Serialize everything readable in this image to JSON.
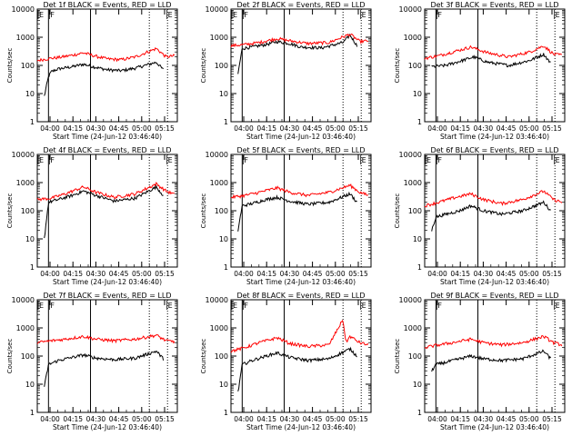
{
  "chart_data": [
    {
      "type": "line",
      "title": "Det 1f BLACK = Events, RED = LLD",
      "ylabel": "Counts/sec",
      "xlabel": "Start Time (24-Jun-12 03:46:40)",
      "yscale": "log",
      "ylim": [
        1,
        10000
      ],
      "yticks": [
        "1",
        "10",
        "100",
        "1000",
        "10000"
      ],
      "xticks": [
        "04:00",
        "04:15",
        "04:30",
        "04:45",
        "05:00",
        "05:15"
      ],
      "markers": [
        "E",
        "F",
        "E"
      ],
      "series": [
        {
          "name": "BLACK = Events",
          "color": "#000000",
          "profile": [
            [
              0.05,
              8
            ],
            [
              0.08,
              40
            ],
            [
              0.1,
              60
            ],
            [
              0.15,
              75
            ],
            [
              0.25,
              90
            ],
            [
              0.33,
              110
            ],
            [
              0.42,
              85
            ],
            [
              0.5,
              70
            ],
            [
              0.6,
              65
            ],
            [
              0.7,
              80
            ],
            [
              0.85,
              130
            ],
            [
              0.9,
              70
            ]
          ]
        },
        {
          "name": "RED = LLD",
          "color": "#ff0000",
          "profile": [
            [
              0,
              150
            ],
            [
              0.1,
              180
            ],
            [
              0.15,
              190
            ],
            [
              0.25,
              230
            ],
            [
              0.33,
              280
            ],
            [
              0.42,
              210
            ],
            [
              0.5,
              170
            ],
            [
              0.6,
              160
            ],
            [
              0.7,
              200
            ],
            [
              0.85,
              400
            ],
            [
              0.92,
              200
            ],
            [
              0.98,
              220
            ]
          ]
        }
      ]
    },
    {
      "type": "line",
      "title": "Det 2f BLACK = Events, RED = LLD",
      "ylabel": "Counts/sec",
      "xlabel": "Start Time (24-Jun-12 03:46:40)",
      "yscale": "log",
      "ylim": [
        1,
        10000
      ],
      "yticks": [
        "1",
        "10",
        "100",
        "1000",
        "10000"
      ],
      "xticks": [
        "04:00",
        "04:15",
        "04:30",
        "04:45",
        "05:00",
        "05:15"
      ],
      "markers": [
        "E",
        "F",
        "E"
      ],
      "series": [
        {
          "name": "BLACK = Events",
          "color": "#000000",
          "profile": [
            [
              0.05,
              50
            ],
            [
              0.08,
              400
            ],
            [
              0.15,
              450
            ],
            [
              0.25,
              550
            ],
            [
              0.33,
              700
            ],
            [
              0.42,
              600
            ],
            [
              0.5,
              450
            ],
            [
              0.65,
              420
            ],
            [
              0.8,
              650
            ],
            [
              0.85,
              1200
            ],
            [
              0.9,
              500
            ]
          ]
        },
        {
          "name": "RED = LLD",
          "color": "#ff0000",
          "profile": [
            [
              0,
              500
            ],
            [
              0.1,
              550
            ],
            [
              0.2,
              650
            ],
            [
              0.33,
              900
            ],
            [
              0.42,
              750
            ],
            [
              0.55,
              600
            ],
            [
              0.7,
              650
            ],
            [
              0.85,
              1300
            ],
            [
              0.92,
              700
            ],
            [
              0.98,
              750
            ]
          ]
        }
      ]
    },
    {
      "type": "line",
      "title": "Det 3f BLACK = Events, RED = LLD",
      "ylabel": "Counts/sec",
      "xlabel": "Start Time (24-Jun-12 03:46:40)",
      "yscale": "log",
      "ylim": [
        1,
        10000
      ],
      "yticks": [
        "1",
        "10",
        "100",
        "1000",
        "10000"
      ],
      "xticks": [
        "04:00",
        "04:15",
        "04:30",
        "04:45",
        "05:00",
        "05:15"
      ],
      "markers": [
        "F",
        "E"
      ],
      "series": [
        {
          "name": "BLACK = Events",
          "color": "#000000",
          "profile": [
            [
              0.05,
              90
            ],
            [
              0.15,
              100
            ],
            [
              0.25,
              140
            ],
            [
              0.35,
              200
            ],
            [
              0.45,
              130
            ],
            [
              0.6,
              100
            ],
            [
              0.75,
              150
            ],
            [
              0.85,
              250
            ],
            [
              0.9,
              120
            ]
          ]
        },
        {
          "name": "RED = LLD",
          "color": "#ff0000",
          "profile": [
            [
              0,
              180
            ],
            [
              0.1,
              220
            ],
            [
              0.2,
              300
            ],
            [
              0.33,
              450
            ],
            [
              0.45,
              280
            ],
            [
              0.6,
              200
            ],
            [
              0.75,
              300
            ],
            [
              0.85,
              500
            ],
            [
              0.92,
              250
            ],
            [
              0.98,
              230
            ]
          ]
        }
      ]
    },
    {
      "type": "line",
      "title": "Det 4f BLACK = Events, RED = LLD",
      "ylabel": "Counts/sec",
      "xlabel": "Start Time (24-Jun-12 03:46:40)",
      "yscale": "log",
      "ylim": [
        1,
        10000
      ],
      "yticks": [
        "1",
        "10",
        "100",
        "1000",
        "10000"
      ],
      "xticks": [
        "04:00",
        "04:15",
        "04:30",
        "04:45",
        "05:00",
        "05:15"
      ],
      "markers": [
        "E",
        "F",
        "E"
      ],
      "series": [
        {
          "name": "BLACK = Events",
          "color": "#000000",
          "profile": [
            [
              0.05,
              10
            ],
            [
              0.08,
              200
            ],
            [
              0.15,
              250
            ],
            [
              0.25,
              350
            ],
            [
              0.33,
              500
            ],
            [
              0.42,
              350
            ],
            [
              0.55,
              220
            ],
            [
              0.7,
              280
            ],
            [
              0.85,
              700
            ],
            [
              0.9,
              350
            ]
          ]
        },
        {
          "name": "RED = LLD",
          "color": "#ff0000",
          "profile": [
            [
              0,
              250
            ],
            [
              0.1,
              280
            ],
            [
              0.2,
              400
            ],
            [
              0.33,
              700
            ],
            [
              0.42,
              450
            ],
            [
              0.55,
              300
            ],
            [
              0.7,
              400
            ],
            [
              0.85,
              900
            ],
            [
              0.92,
              500
            ],
            [
              0.98,
              380
            ]
          ]
        }
      ]
    },
    {
      "type": "line",
      "title": "Det 5f BLACK = Events, RED = LLD",
      "ylabel": "Counts/sec",
      "xlabel": "Start Time (24-Jun-12 03:46:40)",
      "yscale": "log",
      "ylim": [
        1,
        10000
      ],
      "yticks": [
        "1",
        "10",
        "100",
        "1000",
        "10000"
      ],
      "xticks": [
        "04:00",
        "04:15",
        "04:30",
        "04:45",
        "05:00",
        "05:15"
      ],
      "markers": [
        "F",
        "E"
      ],
      "series": [
        {
          "name": "BLACK = Events",
          "color": "#000000",
          "profile": [
            [
              0.05,
              20
            ],
            [
              0.08,
              150
            ],
            [
              0.15,
              180
            ],
            [
              0.25,
              250
            ],
            [
              0.33,
              300
            ],
            [
              0.42,
              220
            ],
            [
              0.55,
              170
            ],
            [
              0.7,
              200
            ],
            [
              0.85,
              400
            ],
            [
              0.9,
              200
            ]
          ]
        },
        {
          "name": "RED = LLD",
          "color": "#ff0000",
          "profile": [
            [
              0,
              300
            ],
            [
              0.1,
              350
            ],
            [
              0.2,
              450
            ],
            [
              0.33,
              650
            ],
            [
              0.42,
              450
            ],
            [
              0.55,
              350
            ],
            [
              0.7,
              450
            ],
            [
              0.85,
              800
            ],
            [
              0.92,
              450
            ],
            [
              0.98,
              350
            ]
          ]
        }
      ]
    },
    {
      "type": "line",
      "title": "Det 6f BLACK = Events, RED = LLD",
      "ylabel": "Counts/sec",
      "xlabel": "Start Time (24-Jun-12 03:46:40)",
      "yscale": "log",
      "ylim": [
        1,
        10000
      ],
      "yticks": [
        "1",
        "10",
        "100",
        "1000",
        "10000"
      ],
      "xticks": [
        "04:00",
        "04:15",
        "04:30",
        "04:45",
        "05:00",
        "05:15"
      ],
      "markers": [
        "E",
        "F",
        "E"
      ],
      "series": [
        {
          "name": "BLACK = Events",
          "color": "#000000",
          "profile": [
            [
              0.05,
              20
            ],
            [
              0.08,
              60
            ],
            [
              0.15,
              75
            ],
            [
              0.25,
              100
            ],
            [
              0.33,
              150
            ],
            [
              0.42,
              100
            ],
            [
              0.55,
              75
            ],
            [
              0.7,
              100
            ],
            [
              0.85,
              200
            ],
            [
              0.9,
              100
            ]
          ]
        },
        {
          "name": "RED = LLD",
          "color": "#ff0000",
          "profile": [
            [
              0,
              150
            ],
            [
              0.1,
              200
            ],
            [
              0.2,
              280
            ],
            [
              0.33,
              400
            ],
            [
              0.42,
              250
            ],
            [
              0.55,
              180
            ],
            [
              0.7,
              250
            ],
            [
              0.85,
              500
            ],
            [
              0.92,
              250
            ],
            [
              0.98,
              200
            ]
          ]
        }
      ]
    },
    {
      "type": "line",
      "title": "Det 7f BLACK = Events, RED = LLD",
      "ylabel": "Counts/sec",
      "xlabel": "Start Time (24-Jun-12 03:46:40)",
      "yscale": "log",
      "ylim": [
        1,
        10000
      ],
      "yticks": [
        "1",
        "10",
        "100",
        "1000",
        "10000"
      ],
      "xticks": [
        "04:00",
        "04:15",
        "04:30",
        "04:45",
        "05:00",
        "05:15"
      ],
      "markers": [
        "E",
        "F",
        "E"
      ],
      "series": [
        {
          "name": "BLACK = Events",
          "color": "#000000",
          "profile": [
            [
              0.05,
              8
            ],
            [
              0.08,
              50
            ],
            [
              0.15,
              70
            ],
            [
              0.25,
              90
            ],
            [
              0.33,
              110
            ],
            [
              0.42,
              85
            ],
            [
              0.55,
              75
            ],
            [
              0.7,
              85
            ],
            [
              0.85,
              150
            ],
            [
              0.9,
              80
            ]
          ]
        },
        {
          "name": "RED = LLD",
          "color": "#ff0000",
          "profile": [
            [
              0,
              300
            ],
            [
              0.1,
              350
            ],
            [
              0.2,
              400
            ],
            [
              0.33,
              500
            ],
            [
              0.42,
              400
            ],
            [
              0.55,
              350
            ],
            [
              0.7,
              400
            ],
            [
              0.85,
              550
            ],
            [
              0.92,
              350
            ],
            [
              0.98,
              330
            ]
          ]
        }
      ]
    },
    {
      "type": "line",
      "title": "Det 8f BLACK = Events, RED = LLD",
      "ylabel": "Counts/sec",
      "xlabel": "Start Time (24-Jun-12 03:46:40)",
      "yscale": "log",
      "ylim": [
        1,
        10000
      ],
      "yticks": [
        "1",
        "10",
        "100",
        "1000",
        "10000"
      ],
      "xticks": [
        "04:00",
        "04:15",
        "04:30",
        "04:45",
        "05:00",
        "05:15"
      ],
      "markers": [
        "E",
        "F",
        "E"
      ],
      "series": [
        {
          "name": "BLACK = Events",
          "color": "#000000",
          "profile": [
            [
              0.05,
              5
            ],
            [
              0.08,
              50
            ],
            [
              0.15,
              70
            ],
            [
              0.25,
              100
            ],
            [
              0.33,
              130
            ],
            [
              0.42,
              90
            ],
            [
              0.55,
              70
            ],
            [
              0.7,
              80
            ],
            [
              0.85,
              180
            ],
            [
              0.9,
              100
            ]
          ]
        },
        {
          "name": "RED = LLD",
          "color": "#ff0000",
          "profile": [
            [
              0,
              150
            ],
            [
              0.1,
              200
            ],
            [
              0.2,
              300
            ],
            [
              0.33,
              450
            ],
            [
              0.42,
              280
            ],
            [
              0.55,
              220
            ],
            [
              0.7,
              250
            ],
            [
              0.8,
              2000
            ],
            [
              0.82,
              300
            ],
            [
              0.85,
              500
            ],
            [
              0.92,
              300
            ],
            [
              0.98,
              250
            ]
          ]
        }
      ]
    },
    {
      "type": "line",
      "title": "Det 9f BLACK = Events, RED = LLD",
      "ylabel": "Counts/sec",
      "xlabel": "Start Time (24-Jun-12 03:46:40)",
      "yscale": "log",
      "ylim": [
        1,
        10000
      ],
      "yticks": [
        "1",
        "10",
        "100",
        "1000",
        "10000"
      ],
      "xticks": [
        "04:00",
        "04:15",
        "04:30",
        "04:45",
        "05:00",
        "05:15"
      ],
      "markers": [
        "F",
        "E"
      ],
      "series": [
        {
          "name": "BLACK = Events",
          "color": "#000000",
          "profile": [
            [
              0.05,
              30
            ],
            [
              0.08,
              50
            ],
            [
              0.15,
              60
            ],
            [
              0.25,
              80
            ],
            [
              0.33,
              100
            ],
            [
              0.42,
              80
            ],
            [
              0.55,
              70
            ],
            [
              0.7,
              80
            ],
            [
              0.85,
              150
            ],
            [
              0.9,
              80
            ]
          ]
        },
        {
          "name": "RED = LLD",
          "color": "#ff0000",
          "profile": [
            [
              0,
              200
            ],
            [
              0.1,
              250
            ],
            [
              0.2,
              300
            ],
            [
              0.33,
              400
            ],
            [
              0.42,
              300
            ],
            [
              0.55,
              250
            ],
            [
              0.7,
              300
            ],
            [
              0.85,
              500
            ],
            [
              0.92,
              300
            ],
            [
              0.98,
              250
            ]
          ]
        }
      ]
    }
  ]
}
